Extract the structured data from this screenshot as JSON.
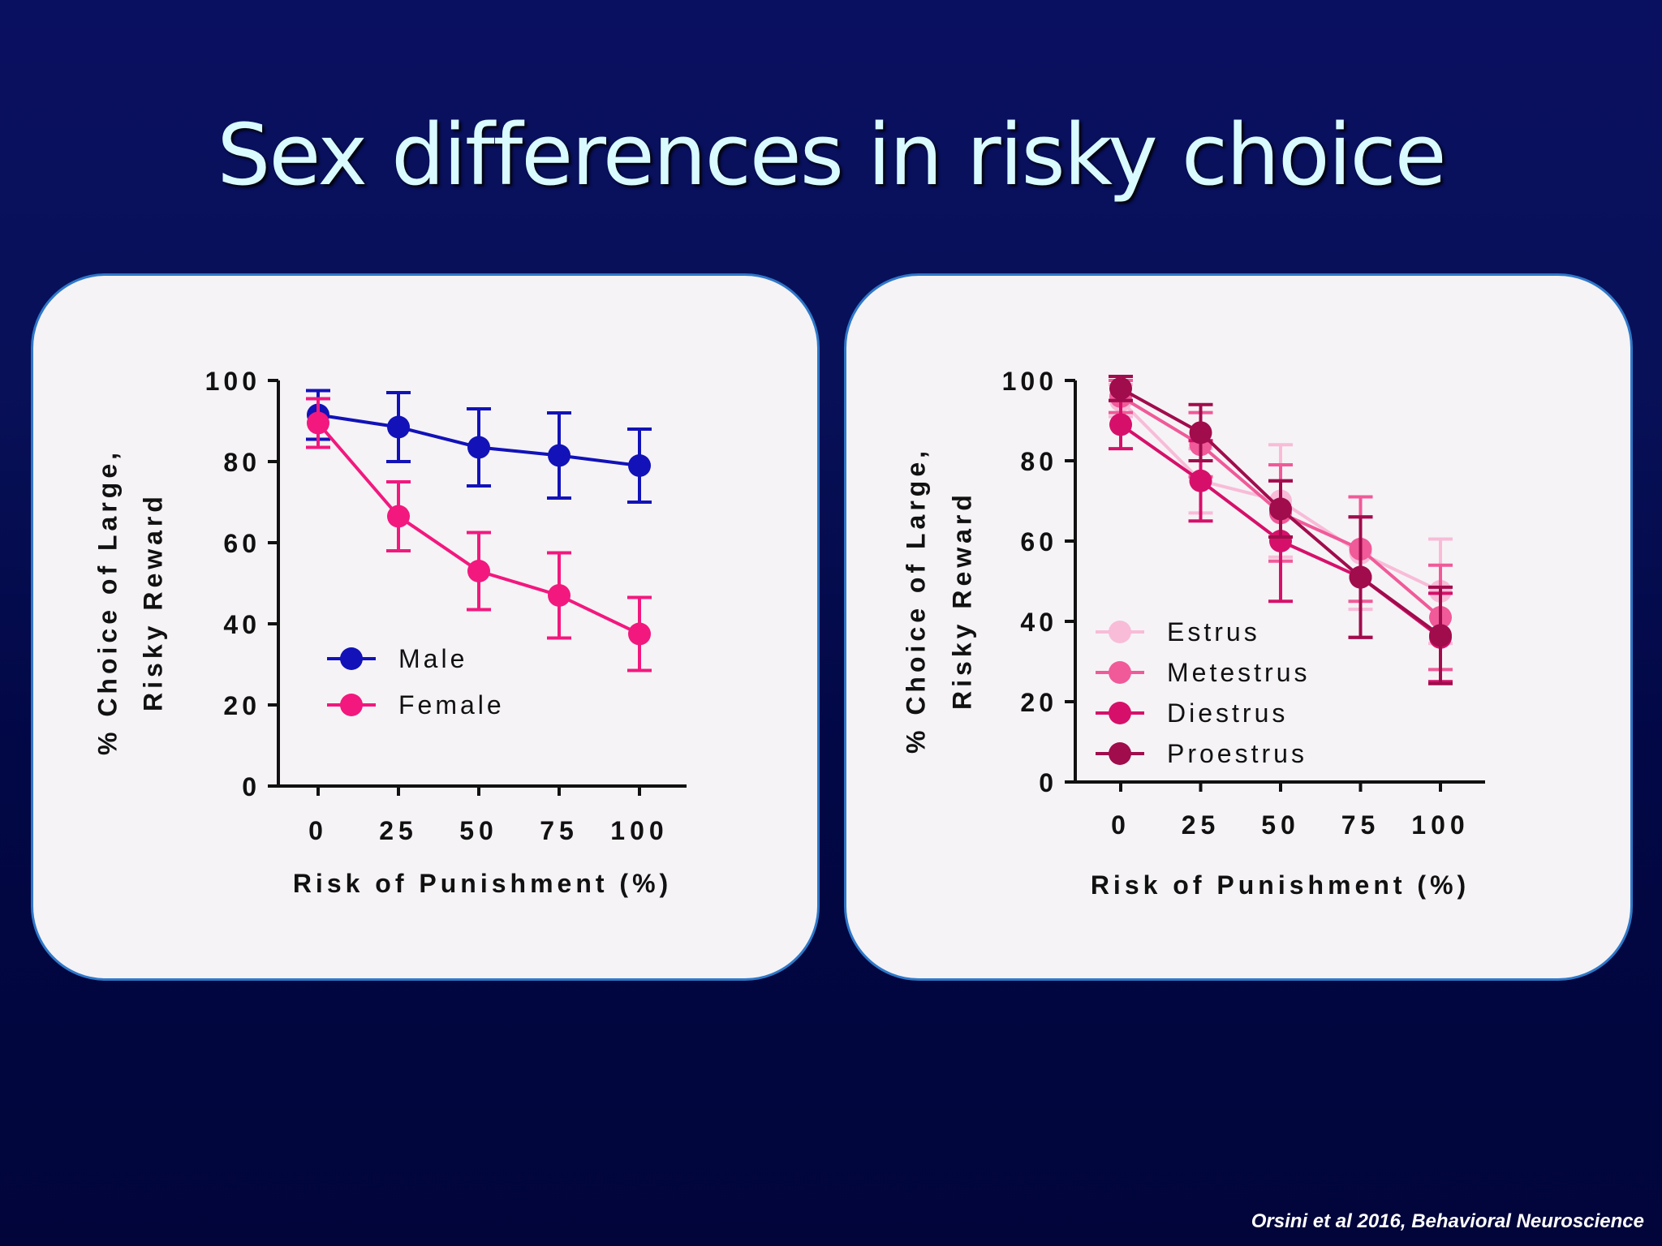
{
  "slide": {
    "title": "Sex differences in risky choice",
    "citation": "Orsini et al 2016, Behavioral Neuroscience"
  },
  "colors": {
    "male": "#1212b8",
    "female": "#f2187e",
    "estrus": "#f8bcd8",
    "metestrus": "#f05a98",
    "diestrus": "#d6106a",
    "proestrus": "#a00c4c"
  },
  "chart_data": [
    {
      "type": "line",
      "title": "",
      "xlabel": "Risk of Punishment (%)",
      "ylabel": "% Choice of Large, Risky Reward",
      "x": [
        0,
        25,
        50,
        75,
        100
      ],
      "x_ticks": [
        "0",
        "25",
        "50",
        "75",
        "100"
      ],
      "y_ticks": [
        "0",
        "20",
        "40",
        "60",
        "80",
        "100"
      ],
      "ylim": [
        0,
        100
      ],
      "legend_position": "lower-left",
      "series": [
        {
          "name": "Male",
          "color_key": "male",
          "values": [
            91.5,
            88.5,
            83.5,
            81.5,
            79
          ],
          "errors": [
            6,
            8.5,
            9.5,
            10.5,
            9
          ]
        },
        {
          "name": "Female",
          "color_key": "female",
          "values": [
            89.5,
            66.5,
            53,
            47,
            37.5
          ],
          "errors": [
            6,
            8.5,
            9.5,
            10.5,
            9
          ]
        }
      ]
    },
    {
      "type": "line",
      "title": "",
      "xlabel": "Risk of Punishment (%)",
      "ylabel": "% Choice of Large, Risky Reward",
      "x": [
        0,
        25,
        50,
        75,
        100
      ],
      "x_ticks": [
        "0",
        "25",
        "50",
        "75",
        "100"
      ],
      "y_ticks": [
        "0",
        "20",
        "40",
        "60",
        "80",
        "100"
      ],
      "ylim": [
        0,
        100
      ],
      "legend_position": "lower-left",
      "series": [
        {
          "name": "Estrus",
          "color_key": "estrus",
          "values": [
            95,
            75,
            70,
            57,
            47.5
          ],
          "errors": [
            4,
            8,
            14,
            14,
            13
          ]
        },
        {
          "name": "Metestrus",
          "color_key": "metestrus",
          "values": [
            96,
            84,
            67,
            58,
            41
          ],
          "errors": [
            4,
            8,
            12,
            13,
            13
          ]
        },
        {
          "name": "Diestrus",
          "color_key": "diestrus",
          "values": [
            89,
            75,
            60,
            51,
            36
          ],
          "errors": [
            6,
            10,
            15,
            15,
            11
          ]
        },
        {
          "name": "Proestrus",
          "color_key": "proestrus",
          "values": [
            98,
            87,
            68,
            51,
            36.5
          ],
          "errors": [
            3,
            7,
            7,
            15,
            12
          ]
        }
      ]
    }
  ]
}
